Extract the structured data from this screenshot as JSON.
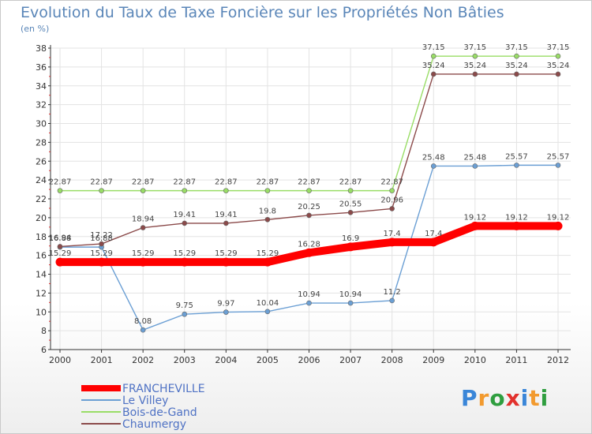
{
  "chart_data": {
    "type": "line",
    "title": "Evolution du Taux de Taxe Foncière sur les Propriétés Non Bâties",
    "ylabel": "(en %)",
    "xlabel": "",
    "ylim": [
      6,
      38
    ],
    "yticks": [
      6,
      8,
      10,
      12,
      14,
      16,
      18,
      20,
      22,
      24,
      26,
      28,
      30,
      32,
      34,
      36,
      38
    ],
    "x": [
      "2000",
      "2001",
      "2002",
      "2003",
      "2004",
      "2005",
      "2006",
      "2007",
      "2008",
      "2009",
      "2010",
      "2011",
      "2012"
    ],
    "series": [
      {
        "name": "FRANCHEVILLE",
        "color": "#ff0000",
        "values": [
          15.29,
          15.29,
          15.29,
          15.29,
          15.29,
          15.29,
          16.28,
          16.9,
          17.4,
          17.4,
          19.12,
          19.12,
          19.12
        ],
        "labels": [
          "15.29",
          "15.29",
          "15.29",
          "15.29",
          "15.29",
          "15.29",
          "16.28",
          "16.9",
          "17.4",
          "17.4",
          "19.12",
          "19.12",
          "19.12"
        ]
      },
      {
        "name": "Le Villey",
        "color": "#6b9fd4",
        "values": [
          16.88,
          16.88,
          8.08,
          9.75,
          9.97,
          10.04,
          10.94,
          10.94,
          11.2,
          25.48,
          25.48,
          25.57,
          25.57
        ],
        "labels": [
          "16.88",
          "16.88",
          "8.08",
          "9.75",
          "9.97",
          "10.04",
          "10.94",
          "10.94",
          "11.2",
          "25.48",
          "25.48",
          "25.57",
          "25.57"
        ]
      },
      {
        "name": "Bois-de-Gand",
        "color": "#99dd66",
        "values": [
          22.87,
          22.87,
          22.87,
          22.87,
          22.87,
          22.87,
          22.87,
          22.87,
          22.87,
          37.15,
          37.15,
          37.15,
          37.15
        ],
        "labels": [
          "22.87",
          "22.87",
          "22.87",
          "22.87",
          "22.87",
          "22.87",
          "22.87",
          "22.87",
          "22.87",
          "37.15",
          "37.15",
          "37.15",
          "37.15"
        ]
      },
      {
        "name": "Chaumergy",
        "color": "#8b4a4a",
        "values": [
          16.94,
          17.22,
          18.94,
          19.41,
          19.41,
          19.8,
          20.25,
          20.55,
          20.96,
          35.24,
          35.24,
          35.24,
          35.24
        ],
        "labels": [
          "16.94",
          "17.22",
          "18.94",
          "19.41",
          "19.41",
          "19.8",
          "20.25",
          "20.55",
          "20.96",
          "35.24",
          "35.24",
          "35.24",
          "35.24"
        ]
      }
    ]
  },
  "logo": {
    "text": "Proxiti"
  }
}
